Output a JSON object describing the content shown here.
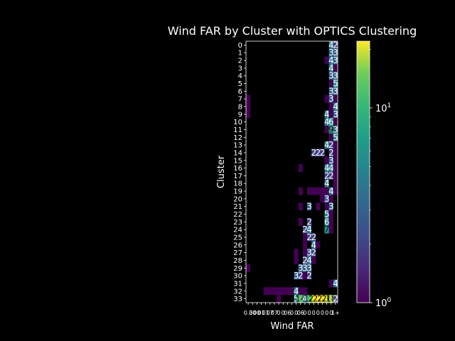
{
  "chart_data": {
    "type": "heatmap",
    "title": "Wind FAR by Cluster with OPTICS Clustering",
    "xlabel": "Wind FAR",
    "ylabel": "Cluster",
    "x_tick_labels": [
      "0.3",
      "00",
      "00",
      "01",
      "01",
      "07",
      "07",
      "0",
      "0",
      "06",
      "0",
      "0",
      "06",
      "0",
      "0",
      "0",
      "0",
      "0",
      "0",
      "0",
      "1+"
    ],
    "y_categories": [
      "0",
      "1",
      "2",
      "3",
      "4",
      "5",
      "6",
      "7",
      "8",
      "9",
      "10",
      "11",
      "12",
      "13",
      "14",
      "15",
      "16",
      "17",
      "18",
      "19",
      "20",
      "21",
      "22",
      "23",
      "24",
      "25",
      "26",
      "27",
      "28",
      "29",
      "30",
      "31",
      "32",
      "33"
    ],
    "colorbar": {
      "scale": "log",
      "range": [
        1,
        22
      ],
      "tick_labels": [
        "10^0",
        "10^1"
      ],
      "colormap": "viridis"
    },
    "cells": [
      {
        "row": 0,
        "col": 19,
        "value": 4,
        "label": "4"
      },
      {
        "row": 0,
        "col": 20,
        "value": 2,
        "label": "2"
      },
      {
        "row": 1,
        "col": 19,
        "value": 3,
        "label": "3"
      },
      {
        "row": 1,
        "col": 20,
        "value": 3,
        "label": "3"
      },
      {
        "row": 2,
        "col": 18,
        "value": 1,
        "label": ""
      },
      {
        "row": 2,
        "col": 19,
        "value": 4,
        "label": "4"
      },
      {
        "row": 2,
        "col": 20,
        "value": 3,
        "label": "3"
      },
      {
        "row": 3,
        "col": 19,
        "value": 4,
        "label": "4"
      },
      {
        "row": 3,
        "col": 20,
        "value": 1,
        "label": ""
      },
      {
        "row": 4,
        "col": 19,
        "value": 3,
        "label": "3"
      },
      {
        "row": 4,
        "col": 20,
        "value": 3,
        "label": "3"
      },
      {
        "row": 5,
        "col": 19,
        "value": 1,
        "label": ""
      },
      {
        "row": 5,
        "col": 20,
        "value": 5,
        "label": "5"
      },
      {
        "row": 6,
        "col": 19,
        "value": 3,
        "label": "3"
      },
      {
        "row": 6,
        "col": 20,
        "value": 3,
        "label": "3"
      },
      {
        "row": 7,
        "col": 0,
        "value": 1,
        "label": ""
      },
      {
        "row": 7,
        "col": 18,
        "value": 1,
        "label": ""
      },
      {
        "row": 7,
        "col": 19,
        "value": 3,
        "label": "3"
      },
      {
        "row": 7,
        "col": 20,
        "value": 1,
        "label": ""
      },
      {
        "row": 8,
        "col": 0,
        "value": 1,
        "label": ""
      },
      {
        "row": 8,
        "col": 19,
        "value": 1,
        "label": ""
      },
      {
        "row": 8,
        "col": 20,
        "value": 4,
        "label": "4"
      },
      {
        "row": 9,
        "col": 0,
        "value": 1,
        "label": ""
      },
      {
        "row": 9,
        "col": 18,
        "value": 4,
        "label": "4"
      },
      {
        "row": 9,
        "col": 19,
        "value": 1,
        "label": ""
      },
      {
        "row": 9,
        "col": 20,
        "value": 3,
        "label": "3"
      },
      {
        "row": 10,
        "col": 18,
        "value": 4,
        "label": "4"
      },
      {
        "row": 10,
        "col": 19,
        "value": 6,
        "label": "6"
      },
      {
        "row": 10,
        "col": 20,
        "value": 1,
        "label": ""
      },
      {
        "row": 11,
        "col": 18,
        "value": 1,
        "label": ""
      },
      {
        "row": 11,
        "col": 19,
        "value": 9,
        "label": "9"
      },
      {
        "row": 11,
        "col": 20,
        "value": 3,
        "label": "3"
      },
      {
        "row": 12,
        "col": 19,
        "value": 1,
        "label": ""
      },
      {
        "row": 12,
        "col": 20,
        "value": 5,
        "label": "5"
      },
      {
        "row": 13,
        "col": 18,
        "value": 4,
        "label": "4"
      },
      {
        "row": 13,
        "col": 19,
        "value": 2,
        "label": "2"
      },
      {
        "row": 13,
        "col": 20,
        "value": 1,
        "label": ""
      },
      {
        "row": 14,
        "col": 15,
        "value": 2,
        "label": "2"
      },
      {
        "row": 14,
        "col": 16,
        "value": 2,
        "label": "2"
      },
      {
        "row": 14,
        "col": 17,
        "value": 2,
        "label": "2"
      },
      {
        "row": 14,
        "col": 19,
        "value": 2,
        "label": "2"
      },
      {
        "row": 14,
        "col": 20,
        "value": 1,
        "label": ""
      },
      {
        "row": 15,
        "col": 18,
        "value": 1,
        "label": ""
      },
      {
        "row": 15,
        "col": 19,
        "value": 3,
        "label": "3"
      },
      {
        "row": 15,
        "col": 20,
        "value": 1,
        "label": ""
      },
      {
        "row": 16,
        "col": 12,
        "value": 1,
        "label": ""
      },
      {
        "row": 16,
        "col": 18,
        "value": 4,
        "label": "4"
      },
      {
        "row": 16,
        "col": 19,
        "value": 4,
        "label": "4"
      },
      {
        "row": 16,
        "col": 20,
        "value": 1,
        "label": ""
      },
      {
        "row": 17,
        "col": 18,
        "value": 2,
        "label": "2"
      },
      {
        "row": 17,
        "col": 19,
        "value": 2,
        "label": "2"
      },
      {
        "row": 17,
        "col": 20,
        "value": 1,
        "label": ""
      },
      {
        "row": 18,
        "col": 18,
        "value": 4,
        "label": "4"
      },
      {
        "row": 18,
        "col": 20,
        "value": 1,
        "label": ""
      },
      {
        "row": 19,
        "col": 12,
        "value": 1,
        "label": ""
      },
      {
        "row": 19,
        "col": 14,
        "value": 1,
        "label": ""
      },
      {
        "row": 19,
        "col": 15,
        "value": 1,
        "label": ""
      },
      {
        "row": 19,
        "col": 16,
        "value": 1,
        "label": ""
      },
      {
        "row": 19,
        "col": 17,
        "value": 1,
        "label": ""
      },
      {
        "row": 19,
        "col": 18,
        "value": 1,
        "label": ""
      },
      {
        "row": 19,
        "col": 19,
        "value": 4,
        "label": "4"
      },
      {
        "row": 19,
        "col": 20,
        "value": 1,
        "label": ""
      },
      {
        "row": 20,
        "col": 17,
        "value": 1,
        "label": ""
      },
      {
        "row": 20,
        "col": 18,
        "value": 3,
        "label": "3"
      },
      {
        "row": 20,
        "col": 19,
        "value": 1,
        "label": ""
      },
      {
        "row": 21,
        "col": 12,
        "value": 1,
        "label": ""
      },
      {
        "row": 21,
        "col": 14,
        "value": 3,
        "label": "3"
      },
      {
        "row": 21,
        "col": 16,
        "value": 1,
        "label": ""
      },
      {
        "row": 21,
        "col": 18,
        "value": 1,
        "label": ""
      },
      {
        "row": 21,
        "col": 19,
        "value": 3,
        "label": "3"
      },
      {
        "row": 22,
        "col": 18,
        "value": 5,
        "label": "5"
      },
      {
        "row": 22,
        "col": 19,
        "value": 1,
        "label": ""
      },
      {
        "row": 23,
        "col": 12,
        "value": 1,
        "label": ""
      },
      {
        "row": 23,
        "col": 14,
        "value": 2,
        "label": "2"
      },
      {
        "row": 23,
        "col": 18,
        "value": 6,
        "label": "6"
      },
      {
        "row": 23,
        "col": 19,
        "value": 1,
        "label": ""
      },
      {
        "row": 24,
        "col": 13,
        "value": 2,
        "label": "2"
      },
      {
        "row": 24,
        "col": 14,
        "value": 4,
        "label": "4"
      },
      {
        "row": 24,
        "col": 18,
        "value": 7,
        "label": "7"
      },
      {
        "row": 24,
        "col": 19,
        "value": 1,
        "label": ""
      },
      {
        "row": 25,
        "col": 13,
        "value": 1,
        "label": ""
      },
      {
        "row": 25,
        "col": 14,
        "value": 2,
        "label": "2"
      },
      {
        "row": 25,
        "col": 15,
        "value": 2,
        "label": "2"
      },
      {
        "row": 26,
        "col": 13,
        "value": 1,
        "label": ""
      },
      {
        "row": 26,
        "col": 15,
        "value": 4,
        "label": "4"
      },
      {
        "row": 26,
        "col": 16,
        "value": 1,
        "label": ""
      },
      {
        "row": 27,
        "col": 11,
        "value": 1,
        "label": ""
      },
      {
        "row": 27,
        "col": 13,
        "value": 1,
        "label": ""
      },
      {
        "row": 27,
        "col": 14,
        "value": 3,
        "label": "3"
      },
      {
        "row": 27,
        "col": 15,
        "value": 2,
        "label": "2"
      },
      {
        "row": 28,
        "col": 11,
        "value": 1,
        "label": ""
      },
      {
        "row": 28,
        "col": 13,
        "value": 2,
        "label": "2"
      },
      {
        "row": 28,
        "col": 14,
        "value": 4,
        "label": "4"
      },
      {
        "row": 28,
        "col": 15,
        "value": 1,
        "label": ""
      },
      {
        "row": 29,
        "col": 0,
        "value": 1,
        "label": ""
      },
      {
        "row": 29,
        "col": 12,
        "value": 3,
        "label": "3"
      },
      {
        "row": 29,
        "col": 13,
        "value": 3,
        "label": "3"
      },
      {
        "row": 29,
        "col": 14,
        "value": 3,
        "label": "3"
      },
      {
        "row": 30,
        "col": 11,
        "value": 3,
        "label": "3"
      },
      {
        "row": 30,
        "col": 12,
        "value": 2,
        "label": "2"
      },
      {
        "row": 30,
        "col": 13,
        "value": 1,
        "label": ""
      },
      {
        "row": 30,
        "col": 14,
        "value": 2,
        "label": "2"
      },
      {
        "row": 31,
        "col": 19,
        "value": 1,
        "label": ""
      },
      {
        "row": 31,
        "col": 20,
        "value": 4,
        "label": "4"
      },
      {
        "row": 32,
        "col": 4,
        "value": 1,
        "label": ""
      },
      {
        "row": 32,
        "col": 5,
        "value": 1,
        "label": ""
      },
      {
        "row": 32,
        "col": 6,
        "value": 1,
        "label": ""
      },
      {
        "row": 32,
        "col": 7,
        "value": 1,
        "label": ""
      },
      {
        "row": 32,
        "col": 8,
        "value": 1,
        "label": ""
      },
      {
        "row": 32,
        "col": 9,
        "value": 1,
        "label": ""
      },
      {
        "row": 32,
        "col": 10,
        "value": 1,
        "label": ""
      },
      {
        "row": 32,
        "col": 11,
        "value": 4,
        "label": "4"
      },
      {
        "row": 32,
        "col": 12,
        "value": 1,
        "label": ""
      },
      {
        "row": 32,
        "col": 13,
        "value": 1,
        "label": ""
      },
      {
        "row": 33,
        "col": 7,
        "value": 1,
        "label": ""
      },
      {
        "row": 33,
        "col": 11,
        "value": 5,
        "label": "5"
      },
      {
        "row": 33,
        "col": 12,
        "value": 14,
        "label": "14"
      },
      {
        "row": 33,
        "col": 13,
        "value": 4,
        "label": "4"
      },
      {
        "row": 33,
        "col": 14,
        "value": 12,
        "label": "12"
      },
      {
        "row": 33,
        "col": 15,
        "value": 21,
        "label": "21"
      },
      {
        "row": 33,
        "col": 16,
        "value": 22,
        "label": "22"
      },
      {
        "row": 33,
        "col": 17,
        "value": 22,
        "label": "22"
      },
      {
        "row": 33,
        "col": 18,
        "value": 20,
        "label": "20"
      },
      {
        "row": 33,
        "col": 19,
        "value": 18,
        "label": "18"
      },
      {
        "row": 33,
        "col": 20,
        "value": 2,
        "label": "2"
      }
    ]
  }
}
